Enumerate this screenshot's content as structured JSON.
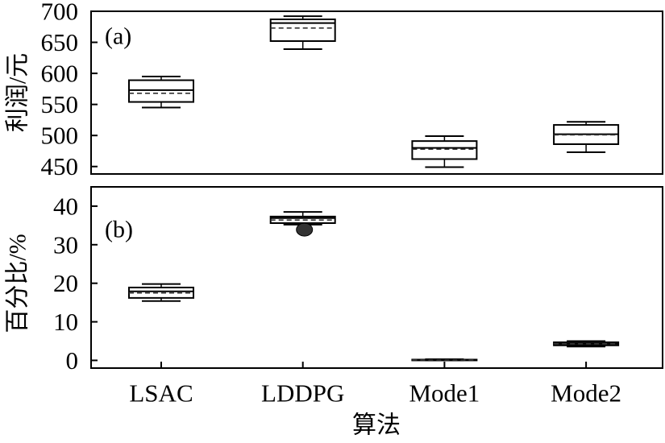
{
  "chart_data": {
    "type": "box",
    "categories": [
      "LSAC",
      "LDDPG",
      "Mode1",
      "Mode2"
    ],
    "xlabel": "算法",
    "grid": false,
    "colors": {
      "line": "#000000",
      "box_fill": "#ffffff",
      "mean_line": "#333333",
      "outlier": "#333333"
    },
    "panels": [
      {
        "label": "(a)",
        "ylabel": "利润/元",
        "ylim": [
          438,
          700
        ],
        "yticks": [
          450,
          500,
          550,
          600,
          650,
          700
        ],
        "boxes": [
          {
            "min": 545,
            "q1": 554,
            "median": 573,
            "mean": 568,
            "q3": 589,
            "max": 595,
            "outliers": []
          },
          {
            "min": 639,
            "q1": 652,
            "median": 681,
            "mean": 673,
            "q3": 687,
            "max": 692,
            "outliers": []
          },
          {
            "min": 449,
            "q1": 462,
            "median": 480,
            "mean": 478,
            "q3": 491,
            "max": 499,
            "outliers": []
          },
          {
            "min": 473,
            "q1": 486,
            "median": 502,
            "mean": 501,
            "q3": 517,
            "max": 522,
            "outliers": []
          }
        ]
      },
      {
        "label": "(b)",
        "ylabel": "百分比/%",
        "ylim": [
          -2,
          45
        ],
        "yticks": [
          0,
          10,
          20,
          30,
          40
        ],
        "boxes": [
          {
            "min": 15.4,
            "q1": 16.2,
            "median": 17.9,
            "mean": 17.5,
            "q3": 18.9,
            "max": 19.8,
            "outliers": []
          },
          {
            "min": 35.2,
            "q1": 35.6,
            "median": 36.9,
            "mean": 36.4,
            "q3": 37.3,
            "max": 38.5,
            "outliers": [
              33.9
            ]
          },
          {
            "min": 0,
            "q1": 0,
            "median": 0.1,
            "mean": 0.1,
            "q3": 0.2,
            "max": 0.3,
            "outliers": []
          },
          {
            "min": 3.6,
            "q1": 3.9,
            "median": 4.3,
            "mean": 4.3,
            "q3": 4.7,
            "max": 5.0,
            "outliers": []
          }
        ]
      }
    ]
  }
}
